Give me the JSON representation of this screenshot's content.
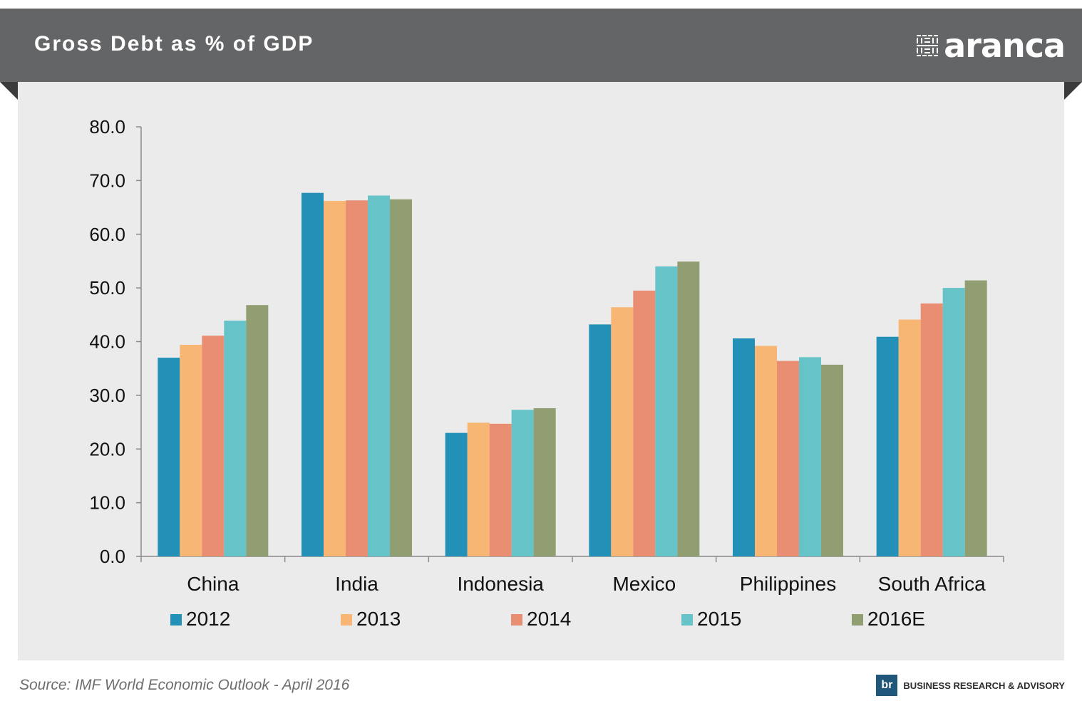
{
  "header": {
    "title": "Gross Debt as % of GDP",
    "logo_text": "aranca"
  },
  "footer": {
    "source": "Source: IMF World Economic Outlook - April 2016",
    "brand_badge": "br",
    "brand_text": "BUSINESS RESEARCH & ADVISORY"
  },
  "colors": {
    "banner": "#646567",
    "panel": "#ebebeb",
    "series": [
      "#2390b7",
      "#f7b673",
      "#e98d73",
      "#66c3c8",
      "#909e71"
    ]
  },
  "chart_data": {
    "type": "bar",
    "title": "Gross Debt as % of GDP",
    "xlabel": "",
    "ylabel": "",
    "ylim": [
      0,
      80
    ],
    "yticks": [
      "0.0",
      "10.0",
      "20.0",
      "30.0",
      "40.0",
      "50.0",
      "60.0",
      "70.0",
      "80.0"
    ],
    "categories": [
      "China",
      "India",
      "Indonesia",
      "Mexico",
      "Philippines",
      "South Africa"
    ],
    "series": [
      {
        "name": "2012",
        "values": [
          37.0,
          67.7,
          23.0,
          43.2,
          40.6,
          40.9
        ]
      },
      {
        "name": "2013",
        "values": [
          39.4,
          66.2,
          24.9,
          46.4,
          39.2,
          44.1
        ]
      },
      {
        "name": "2014",
        "values": [
          41.1,
          66.3,
          24.7,
          49.5,
          36.4,
          47.1
        ]
      },
      {
        "name": "2015",
        "values": [
          43.9,
          67.2,
          27.3,
          54.0,
          37.1,
          50.0
        ]
      },
      {
        "name": "2016E",
        "values": [
          46.8,
          66.5,
          27.6,
          54.9,
          35.7,
          51.4
        ]
      }
    ],
    "grid": false,
    "legend": "bottom"
  }
}
